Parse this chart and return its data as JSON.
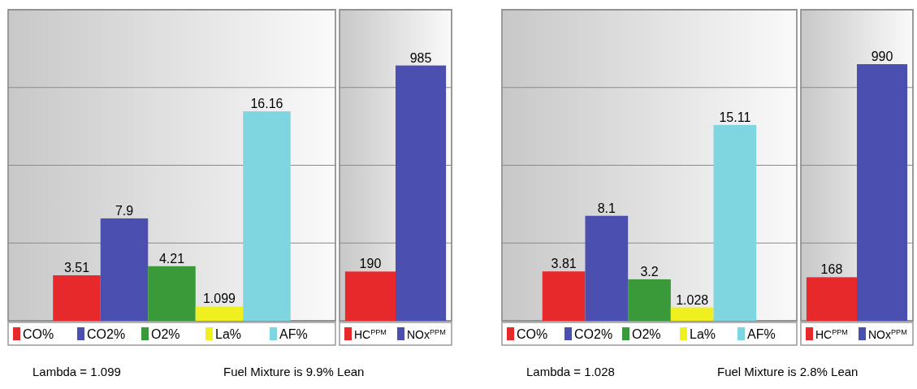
{
  "chart_data": [
    {
      "type": "bar",
      "categories": [
        null
      ],
      "series": [
        {
          "name": "CO%",
          "color": "#e8292b",
          "values": [
            3.51
          ]
        },
        {
          "name": "CO2%",
          "color": "#4a4fb0",
          "values": [
            7.9
          ]
        },
        {
          "name": "O2%",
          "color": "#3a9a3a",
          "values": [
            4.21
          ]
        },
        {
          "name": "La%",
          "color": "#f0f020",
          "values": [
            1.099
          ]
        },
        {
          "name": "AF%",
          "color": "#7fd6e0",
          "values": [
            16.16
          ]
        }
      ],
      "ylim": [
        0,
        24
      ],
      "yticks": [
        {
          "value": 0,
          "label": null
        },
        {
          "value": 6,
          "label": null
        },
        {
          "value": 12,
          "label": null
        },
        {
          "value": 18,
          "label": null
        },
        {
          "value": 24,
          "label": null
        }
      ],
      "grid": "y",
      "legend": "bottom",
      "data_labels": true,
      "annotations": [
        "Lambda = 1.099",
        "Fuel Mixture is 9.9% Lean"
      ]
    },
    {
      "type": "bar",
      "categories": [
        null
      ],
      "series": [
        {
          "name": "HC$^{PPM}$",
          "color": "#e8292b",
          "values": [
            190
          ]
        },
        {
          "name": "NOx$^{PPM}$",
          "color": "#4a4fb0",
          "values": [
            985
          ]
        }
      ],
      "ylim": [
        0,
        1200
      ],
      "yticks": [
        {
          "value": 0,
          "label": null
        },
        {
          "value": 300,
          "label": null
        },
        {
          "value": 600,
          "label": null
        },
        {
          "value": 900,
          "label": null
        },
        {
          "value": 1200,
          "label": null
        }
      ],
      "grid": "y",
      "legend": "bottom",
      "data_labels": true
    },
    {
      "type": "bar",
      "categories": [
        null
      ],
      "series": [
        {
          "name": "CO%",
          "color": "#e8292b",
          "values": [
            3.81
          ]
        },
        {
          "name": "CO2%",
          "color": "#4a4fb0",
          "values": [
            8.1
          ]
        },
        {
          "name": "O2%",
          "color": "#3a9a3a",
          "values": [
            3.2
          ]
        },
        {
          "name": "La%",
          "color": "#f0f020",
          "values": [
            1.028
          ]
        },
        {
          "name": "AF%",
          "color": "#7fd6e0",
          "values": [
            15.11
          ]
        }
      ],
      "ylim": [
        0,
        24
      ],
      "yticks": [
        {
          "value": 0,
          "label": null
        },
        {
          "value": 6,
          "label": null
        },
        {
          "value": 12,
          "label": null
        },
        {
          "value": 18,
          "label": null
        },
        {
          "value": 24,
          "label": null
        }
      ],
      "grid": "y",
      "legend": "bottom",
      "data_labels": true,
      "annotations": [
        "Lambda = 1.028",
        "Fuel Mixture is 2.8% Lean"
      ]
    },
    {
      "type": "bar",
      "categories": [
        null
      ],
      "series": [
        {
          "name": "HC$^{PPM}$",
          "color": "#e8292b",
          "values": [
            168
          ]
        },
        {
          "name": "NOx$^{PPM}$",
          "color": "#4a4fb0",
          "values": [
            990
          ]
        }
      ],
      "ylim": [
        0,
        1200
      ],
      "yticks": [
        {
          "value": 0,
          "label": null
        },
        {
          "value": 300,
          "label": null
        },
        {
          "value": 600,
          "label": null
        },
        {
          "value": 900,
          "label": null
        },
        {
          "value": 1200,
          "label": null
        }
      ],
      "grid": "y",
      "legend": "bottom",
      "data_labels": true
    }
  ]
}
